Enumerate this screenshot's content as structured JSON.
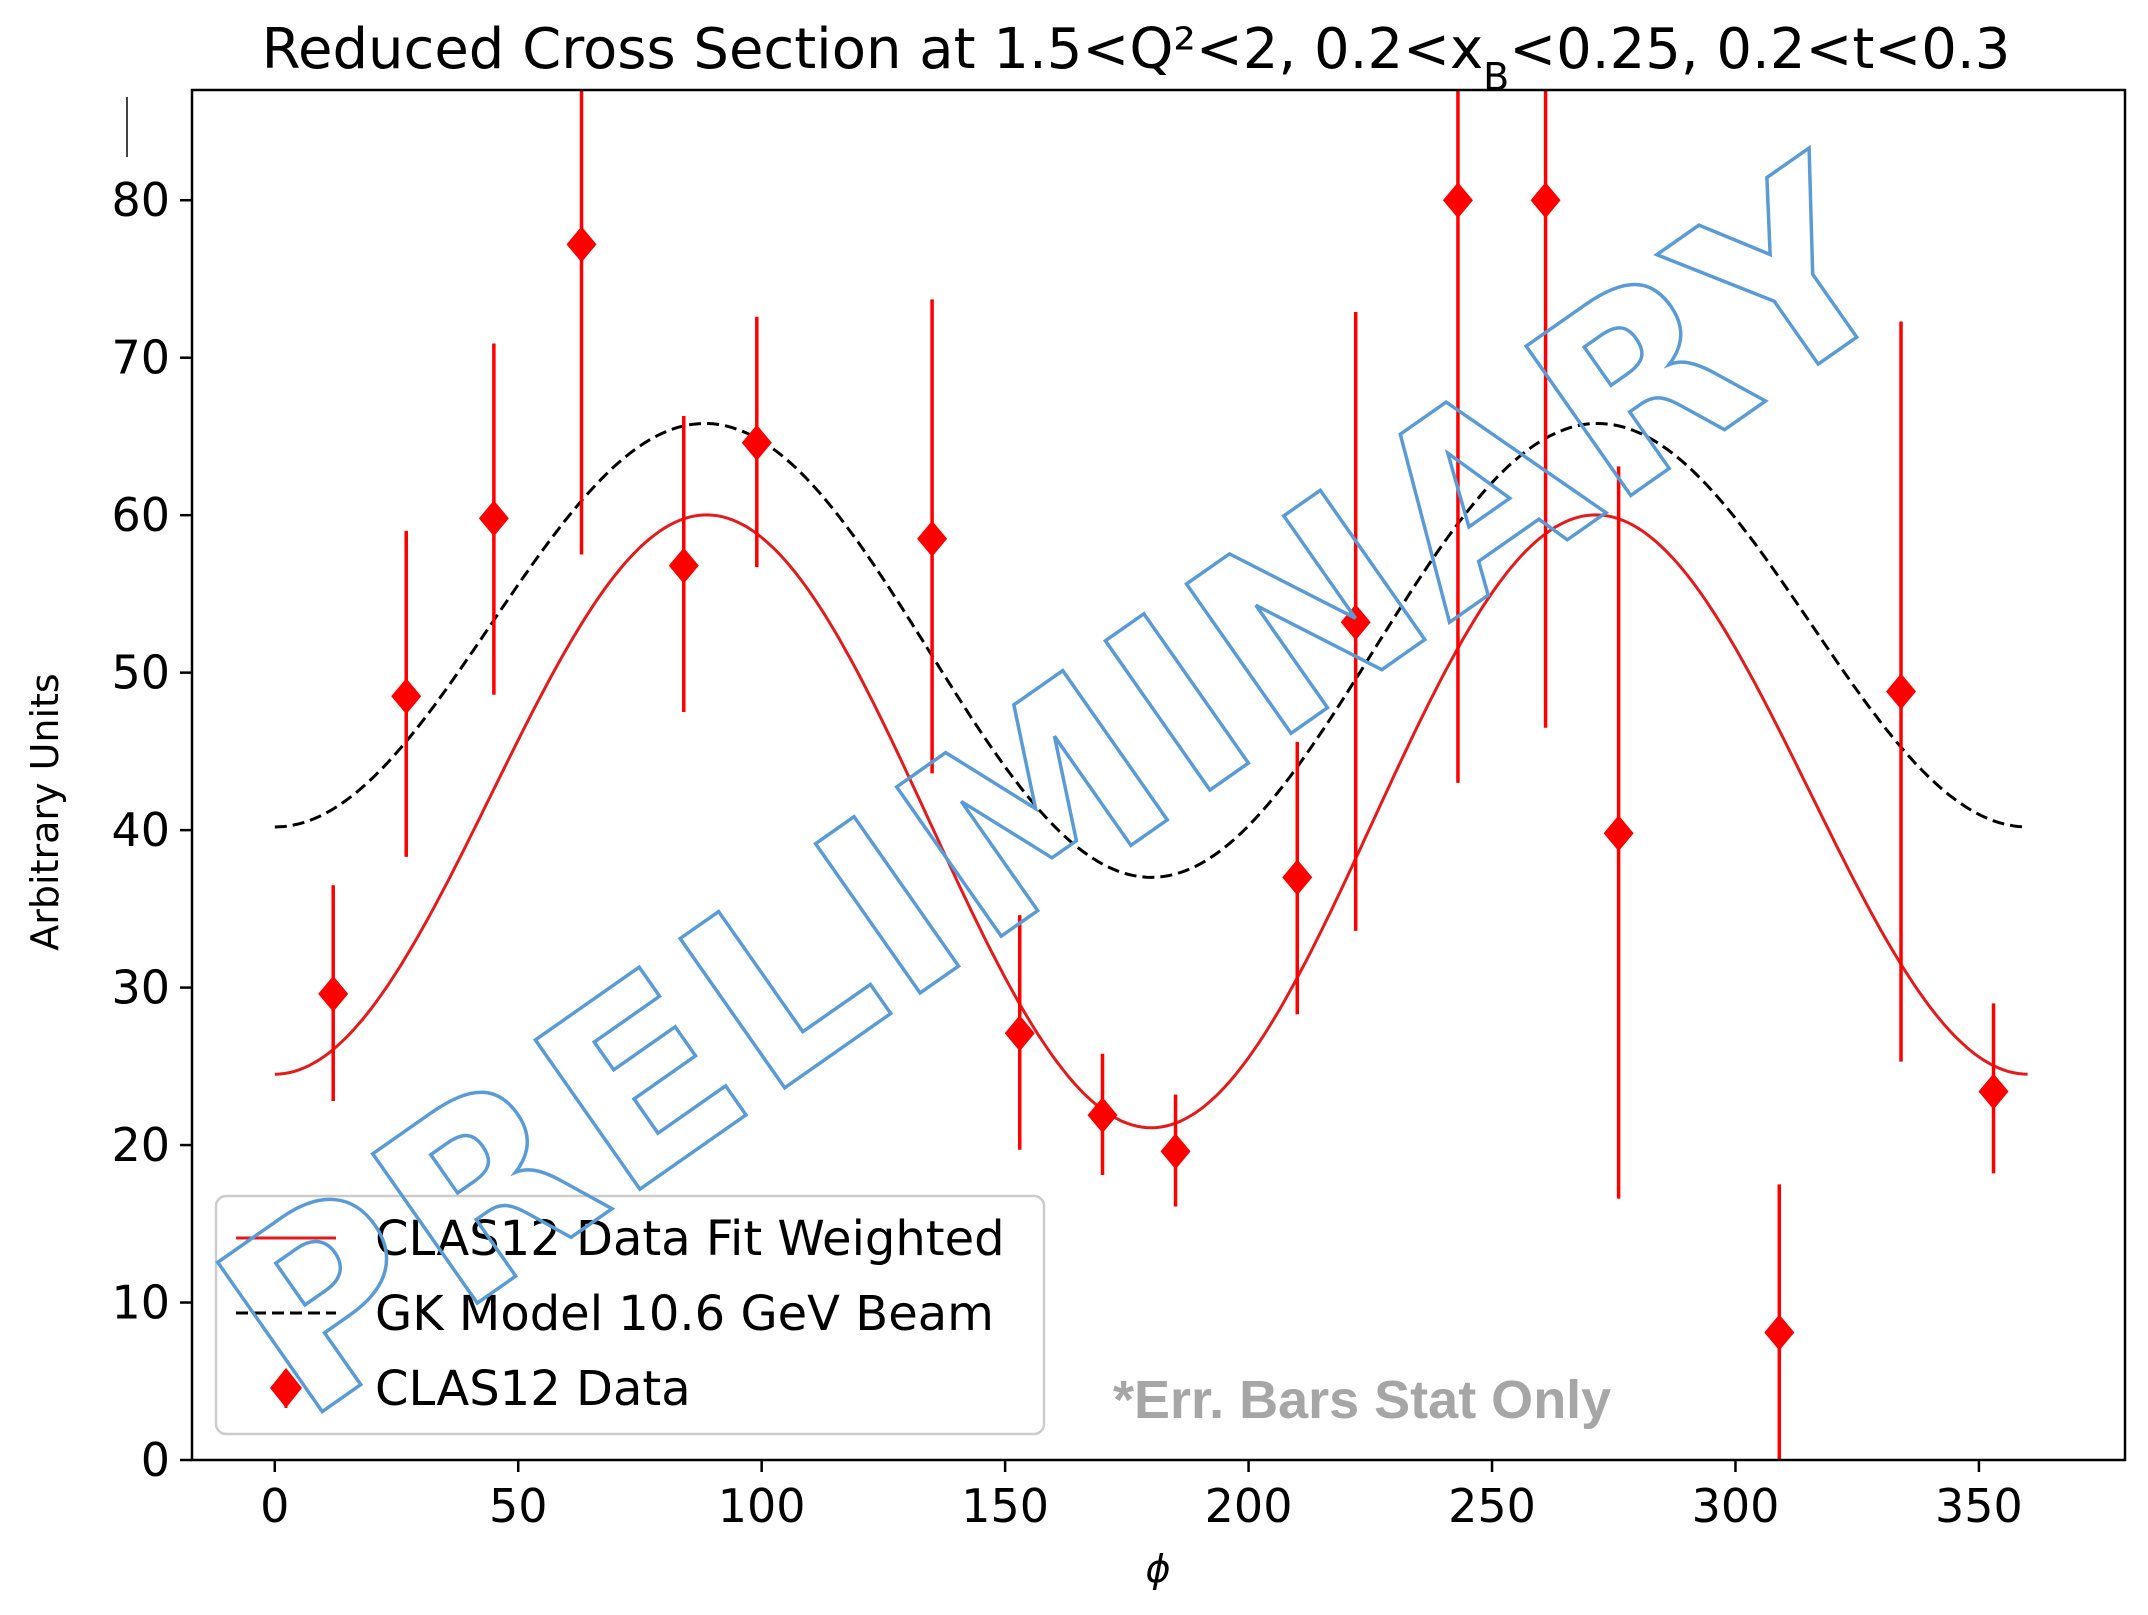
{
  "chart_data": {
    "type": "scatter",
    "title": "Reduced Cross Section at 1.5<Q²<2, 0.2<x",
    "title_sub": "B",
    "title_tail": "<0.25, 0.2<t<0.3",
    "xlabel": "ϕ",
    "ylabel": "Arbitrary Units",
    "xlim": [
      -17,
      380
    ],
    "ylim": [
      0,
      87
    ],
    "xticks": [
      0,
      50,
      100,
      150,
      200,
      250,
      300,
      350
    ],
    "yticks": [
      0,
      10,
      20,
      30,
      40,
      50,
      60,
      70,
      80
    ],
    "grid": false,
    "legend_position": "lower-left",
    "series": [
      {
        "name": "CLAS12 Data Fit Weighted",
        "kind": "line",
        "style": "solid",
        "color": "#e41a1c",
        "model": {
          "A": 41.4,
          "B": 1.7,
          "C": -18.6
        },
        "x_range": [
          0,
          360
        ]
      },
      {
        "name": "GK Model 10.6 GeV Beam",
        "kind": "line",
        "style": "dashed",
        "color": "#000000",
        "model": {
          "A": 52.2,
          "B": 1.6,
          "C": -13.6
        },
        "x_range": [
          0,
          360
        ]
      },
      {
        "name": "CLAS12 Data",
        "kind": "scatter",
        "marker": "diamond",
        "color": "#ff0000",
        "points": [
          {
            "x": 12,
            "y": 29.6,
            "lo": 22.8,
            "hi": 36.5
          },
          {
            "x": 27,
            "y": 48.5,
            "lo": 38.3,
            "hi": 59.0
          },
          {
            "x": 45,
            "y": 59.8,
            "lo": 48.6,
            "hi": 70.9
          },
          {
            "x": 63,
            "y": 77.2,
            "lo": 57.5,
            "hi": 87.0
          },
          {
            "x": 84,
            "y": 56.8,
            "lo": 47.5,
            "hi": 66.3
          },
          {
            "x": 99,
            "y": 64.6,
            "lo": 56.7,
            "hi": 72.6
          },
          {
            "x": 135,
            "y": 58.5,
            "lo": 43.6,
            "hi": 73.7
          },
          {
            "x": 153,
            "y": 27.1,
            "lo": 19.7,
            "hi": 34.6
          },
          {
            "x": 170,
            "y": 21.9,
            "lo": 18.1,
            "hi": 25.8
          },
          {
            "x": 185,
            "y": 19.6,
            "lo": 16.1,
            "hi": 23.2
          },
          {
            "x": 210,
            "y": 37.0,
            "lo": 28.3,
            "hi": 45.6
          },
          {
            "x": 222,
            "y": 53.2,
            "lo": 33.6,
            "hi": 72.9
          },
          {
            "x": 243,
            "y": 80.0,
            "lo": 43.0,
            "hi": 87.0
          },
          {
            "x": 261,
            "y": 80.0,
            "lo": 46.5,
            "hi": 87.0
          },
          {
            "x": 276,
            "y": 39.8,
            "lo": 16.6,
            "hi": 63.1
          },
          {
            "x": 309,
            "y": 8.1,
            "lo": 0,
            "hi": 17.5
          },
          {
            "x": 334,
            "y": 48.8,
            "lo": 25.3,
            "hi": 72.3
          },
          {
            "x": 353,
            "y": 23.4,
            "lo": 18.2,
            "hi": 29.0
          }
        ]
      }
    ],
    "annotations": {
      "note": "*Err. Bars Stat Only",
      "watermark": "PRELIMINARY"
    }
  }
}
